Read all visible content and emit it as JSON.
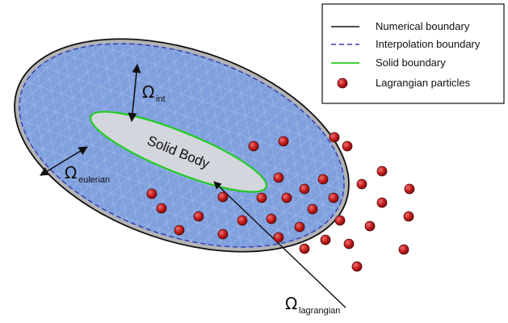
{
  "legend": {
    "numerical_boundary": "Numerical boundary",
    "interpolation_boundary": "Interpolation boundary",
    "solid_boundary": "Solid boundary",
    "lagrangian_particles": "Lagrangian particles"
  },
  "labels": {
    "solid_body": "Solid Body",
    "omega_symbol": "Ω",
    "omega_int_sub": "int",
    "omega_eulerian_sub": "eulerian",
    "omega_lagrangian_sub": "lagrangian"
  },
  "colors": {
    "domain_fill": "#7fa0de",
    "mesh_line": "#a9bde6",
    "outer_ring": "#b4b4b4",
    "numerical_boundary": "#111111",
    "interpolation_boundary": "#3a3aa8",
    "solid_boundary": "#22cc22",
    "solid_fill": "#d3d6dc",
    "particle_fill": "#c41d1d",
    "particle_stroke": "#4a0a0a"
  }
}
